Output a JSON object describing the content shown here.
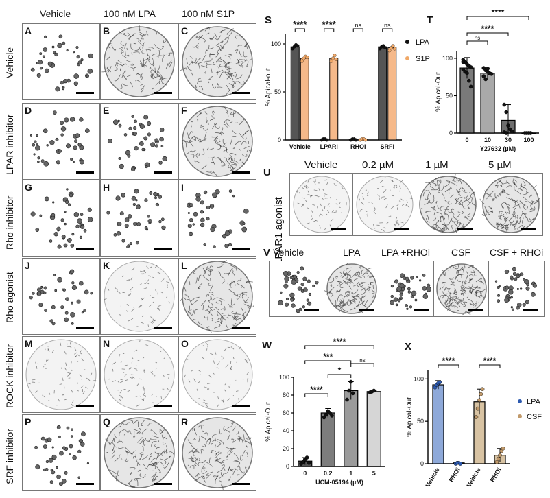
{
  "columns": [
    "Vehicle",
    "100 nM LPA",
    "100 nM S1P"
  ],
  "rows": [
    "Vehicle",
    "LPAR inhibitor",
    "Rho inhibitor",
    "Rho agonist",
    "ROCK inhibitor",
    "SRF inhibitor"
  ],
  "tiles": [
    {
      "letter": "A",
      "kind": "sparse"
    },
    {
      "letter": "B",
      "kind": "dense"
    },
    {
      "letter": "C",
      "kind": "dense"
    },
    {
      "letter": "D",
      "kind": "sparse"
    },
    {
      "letter": "E",
      "kind": "sparse"
    },
    {
      "letter": "F",
      "kind": "dense"
    },
    {
      "letter": "G",
      "kind": "sparse"
    },
    {
      "letter": "H",
      "kind": "sparse"
    },
    {
      "letter": "I",
      "kind": "sparse"
    },
    {
      "letter": "J",
      "kind": "sparse"
    },
    {
      "letter": "K",
      "kind": "medium"
    },
    {
      "letter": "L",
      "kind": "dense"
    },
    {
      "letter": "M",
      "kind": "medium"
    },
    {
      "letter": "N",
      "kind": "medium"
    },
    {
      "letter": "O",
      "kind": "medium"
    },
    {
      "letter": "P",
      "kind": "sparse"
    },
    {
      "letter": "Q",
      "kind": "dense"
    },
    {
      "letter": "R",
      "kind": "dense"
    }
  ],
  "panelU": {
    "letter": "U",
    "row_label": "LPAR1 agonist",
    "labels": [
      "Vehicle",
      "0.2 µM",
      "1 µM",
      "5 µM"
    ],
    "kinds": [
      "medium",
      "medium",
      "dense",
      "dense"
    ]
  },
  "panelV": {
    "letter": "V",
    "labels": [
      "Vehicle",
      "LPA",
      "LPA +RHOi",
      "CSF",
      "CSF + RHOi"
    ],
    "kinds": [
      "sparse",
      "dense",
      "sparse",
      "dense",
      "sparse"
    ]
  },
  "chart_data": [
    {
      "panel": "S",
      "type": "bar",
      "categories": [
        "Vehicle",
        "LPARi",
        "RHOi",
        "SRFi"
      ],
      "series": [
        {
          "name": "LPA",
          "values": [
            97,
            1,
            1,
            97
          ],
          "color": "#555555",
          "points": [
            [
              95,
              97,
              99,
              98
            ],
            [
              0,
              1,
              1,
              0
            ],
            [
              0,
              1,
              1,
              0
            ],
            [
              95,
              97,
              98,
              96
            ]
          ]
        },
        {
          "name": "S1P",
          "values": [
            85,
            85,
            1,
            96
          ],
          "color": "#f5b98a",
          "points": [
            [
              82,
              85,
              87,
              86
            ],
            [
              82,
              85,
              88,
              84
            ],
            [
              0,
              1,
              1,
              0
            ],
            [
              93,
              96,
              98,
              95
            ]
          ]
        }
      ],
      "ylabel": "% Apical-out",
      "ylim": [
        0,
        110
      ],
      "yticks": [
        "0",
        "50",
        "100"
      ],
      "significance": [
        "****",
        "****",
        "ns",
        "ns"
      ]
    },
    {
      "panel": "T",
      "type": "bar",
      "categories": [
        "0",
        "10",
        "30",
        "100"
      ],
      "values": [
        87,
        80,
        17,
        0
      ],
      "errors": [
        14,
        7,
        21,
        0
      ],
      "colors": [
        "#7a7a7a",
        "#a9a9a9",
        "#6e6e6e",
        "#ffffff"
      ],
      "points": [
        [
          98,
          95,
          92,
          90,
          88,
          85,
          82,
          80,
          70,
          62,
          95
        ],
        [
          87,
          84,
          82,
          80,
          79,
          76,
          72,
          86
        ],
        [
          38,
          28,
          10,
          5,
          2,
          1,
          0
        ],
        [
          0,
          0,
          0,
          0
        ]
      ],
      "xlabel": "Y27632 (µM)",
      "ylabel": "% Apical-Out",
      "ylim": [
        0,
        110
      ],
      "yticks": [
        "0",
        "50",
        "100"
      ],
      "brackets": [
        {
          "from": 0,
          "to": 1,
          "label": "ns"
        },
        {
          "from": 0,
          "to": 2,
          "label": "****"
        },
        {
          "from": 0,
          "to": 3,
          "label": "****"
        }
      ]
    },
    {
      "panel": "W",
      "type": "bar",
      "categories": [
        "0",
        "0.2",
        "1",
        "5"
      ],
      "values": [
        6,
        60,
        85,
        84
      ],
      "errors": [
        4,
        5,
        10,
        1
      ],
      "colors": [
        "#555555",
        "#7d7d7d",
        "#9b9b9b",
        "#d6d6d6"
      ],
      "points": [
        [
          3,
          5,
          8,
          10,
          4
        ],
        [
          55,
          58,
          62,
          60,
          57
        ],
        [
          75,
          85,
          95,
          82
        ],
        [
          83,
          84,
          85
        ]
      ],
      "xlabel": "UCM-05194 (µM)",
      "ylabel": "% Apical-Out",
      "ylim": [
        0,
        100
      ],
      "yticks": [
        "0",
        "20",
        "40",
        "60",
        "80",
        "100"
      ],
      "brackets": [
        {
          "from": 0,
          "to": 1,
          "label": "****"
        },
        {
          "from": 1,
          "to": 2,
          "label": "*"
        },
        {
          "from": 2,
          "to": 3,
          "label": "ns"
        },
        {
          "from": 0,
          "to": 2,
          "label": "***"
        },
        {
          "from": 0,
          "to": 3,
          "label": "****"
        }
      ]
    },
    {
      "panel": "X",
      "type": "bar",
      "categories": [
        "Vehicle",
        "RHOi",
        "Vehicle",
        "RHOi"
      ],
      "values": [
        93,
        1,
        73,
        10
      ],
      "errors": [
        5,
        1,
        15,
        8
      ],
      "colors": [
        "#8ea9d9",
        "#8ea9d9",
        "#d8c3a3",
        "#d8c3a3"
      ],
      "point_colors": [
        "#2d5ab0",
        "#2d5ab0",
        "#c19a6b",
        "#c19a6b"
      ],
      "points": [
        [
          90,
          93,
          95,
          96
        ],
        [
          0,
          1,
          1,
          0
        ],
        [
          55,
          65,
          75,
          82,
          88
        ],
        [
          2,
          6,
          10,
          15,
          18
        ]
      ],
      "legend": [
        {
          "name": "LPA",
          "color": "#2d5ab0"
        },
        {
          "name": "CSF",
          "color": "#c19a6b"
        }
      ],
      "ylabel": "% Apical-Out",
      "ylim": [
        0,
        110
      ],
      "yticks": [
        "0",
        "50",
        "100"
      ],
      "significance": [
        "****",
        "****"
      ]
    }
  ]
}
